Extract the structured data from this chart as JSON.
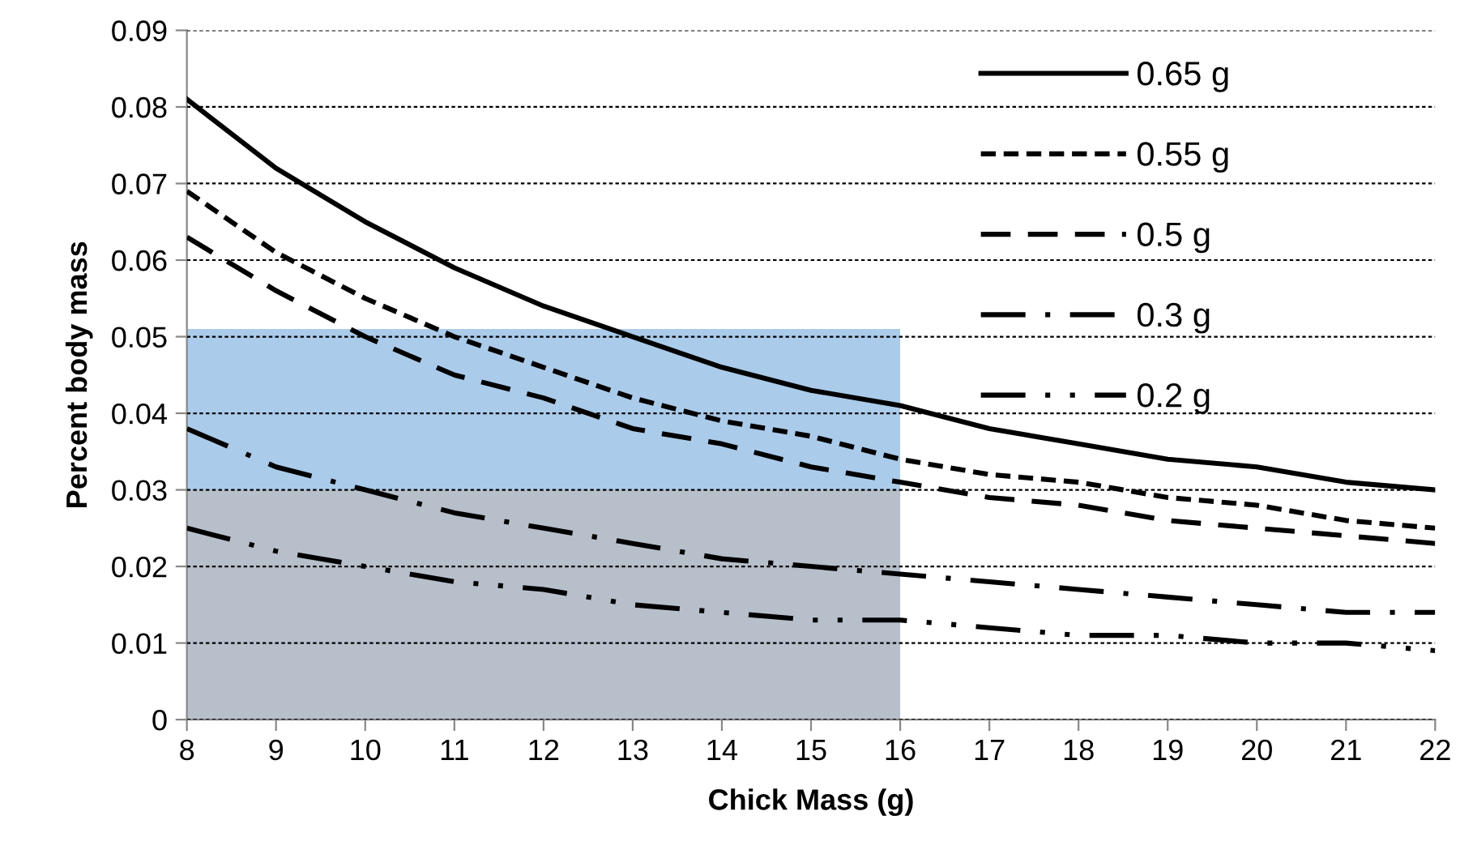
{
  "chart_data": {
    "type": "line",
    "xlabel": "Chick Mass (g)",
    "ylabel": "Percent body mass",
    "x": [
      8,
      9,
      10,
      11,
      12,
      13,
      14,
      15,
      16,
      17,
      18,
      19,
      20,
      21,
      22
    ],
    "xlim": [
      8,
      22
    ],
    "xticks": [
      8,
      9,
      10,
      11,
      12,
      13,
      14,
      15,
      16,
      17,
      18,
      19,
      20,
      21,
      22
    ],
    "ylim": [
      0,
      0.09
    ],
    "yticks": [
      0,
      0.01,
      0.02,
      0.03,
      0.04,
      0.05,
      0.06,
      0.07,
      0.08,
      0.09
    ],
    "grid": "y",
    "legend": "top right",
    "marker": "none",
    "series": [
      {
        "type": "area",
        "color": "#abcbea",
        "values": [
          0.051,
          0.051,
          0.051,
          0.051,
          0.051,
          0.051,
          0.051,
          0.051,
          0.051,
          null,
          null,
          null,
          null,
          null,
          null
        ]
      },
      {
        "type": "area",
        "color": "#b7bfcb",
        "values": [
          0.03,
          0.03,
          0.03,
          0.03,
          0.03,
          0.03,
          0.03,
          0.03,
          0.03,
          null,
          null,
          null,
          null,
          null,
          null
        ]
      },
      {
        "name": "0.65 g",
        "color": "#000000",
        "line_style": "solid",
        "values": [
          0.081,
          0.072,
          0.065,
          0.059,
          0.054,
          0.05,
          0.046,
          0.043,
          0.041,
          0.038,
          0.036,
          0.034,
          0.033,
          0.031,
          0.03
        ]
      },
      {
        "name": "0.55 g",
        "color": "#000000",
        "line_style": "dotted",
        "values": [
          0.069,
          0.061,
          0.055,
          0.05,
          0.046,
          0.042,
          0.039,
          0.037,
          0.034,
          0.032,
          0.031,
          0.029,
          0.028,
          0.026,
          0.025
        ]
      },
      {
        "name": "0.5 g",
        "color": "#000000",
        "line_style": "dashed",
        "values": [
          0.063,
          0.056,
          0.05,
          0.045,
          0.042,
          0.038,
          0.036,
          0.033,
          0.031,
          0.029,
          0.028,
          0.026,
          0.025,
          0.024,
          0.023
        ]
      },
      {
        "name": "0.3 g",
        "color": "#000000",
        "line_style": "dashdot",
        "values": [
          0.038,
          0.033,
          0.03,
          0.027,
          0.025,
          0.023,
          0.021,
          0.02,
          0.019,
          0.018,
          0.017,
          0.016,
          0.015,
          0.014,
          0.014
        ]
      },
      {
        "name": "0.2 g",
        "color": "#000000",
        "line_style": "dashdotdot",
        "values": [
          0.025,
          0.022,
          0.02,
          0.018,
          0.017,
          0.015,
          0.014,
          0.013,
          0.013,
          0.012,
          0.011,
          0.011,
          0.01,
          0.01,
          0.009
        ]
      }
    ]
  }
}
